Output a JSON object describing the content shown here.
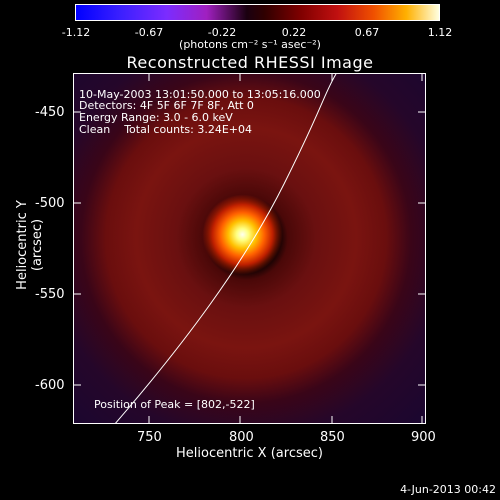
{
  "colorbar": {
    "ticks": [
      "-1.12",
      "-0.67",
      "-0.22",
      "0.22",
      "0.67",
      "1.12"
    ],
    "unit": "(photons cm⁻² s⁻¹ asec⁻²)"
  },
  "title": "Reconstructed RHESSI Image",
  "info": {
    "time_range": "10-May-2003 13:01:50.000 to 13:05:16.000",
    "detectors": "Detectors: 4F 5F 6F 7F 8F, Att 0",
    "energy": "Energy Range: 3.0 - 6.0 keV",
    "clean": "Clean    Total counts: 3.24E+04",
    "peak": "Position of Peak = [802,-522]"
  },
  "axes": {
    "xlabel": "Heliocentric X (arcsec)",
    "ylabel": "Heliocentric Y (arcsec)",
    "xticks": [
      "750",
      "800",
      "850",
      "900"
    ],
    "yticks": [
      "-450",
      "-500",
      "-550",
      "-600"
    ]
  },
  "footer": "4-Jun-2013 00:42",
  "colors": {
    "limb_line": "#ffffff",
    "background": "#000000"
  }
}
